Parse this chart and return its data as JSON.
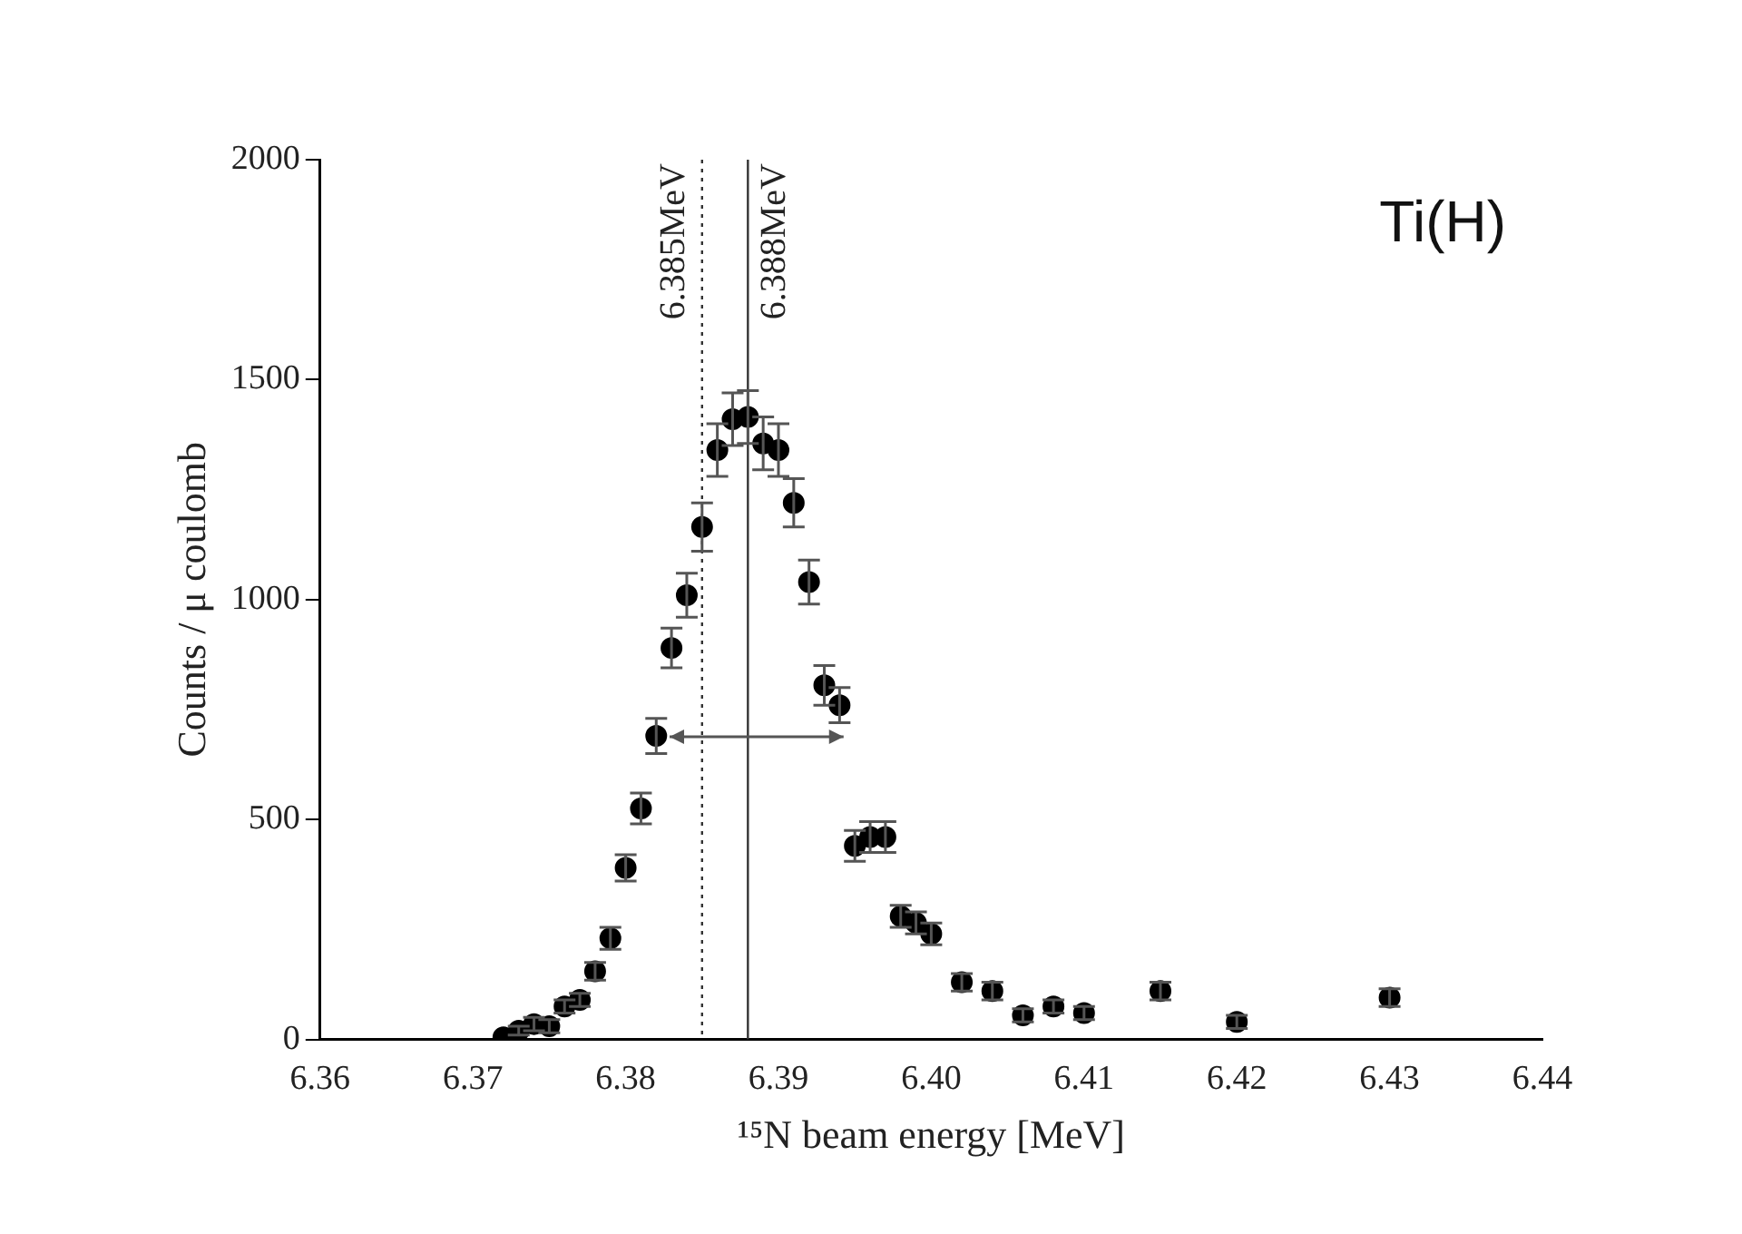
{
  "chart_data": {
    "type": "scatter",
    "xlabel": "¹⁵N beam energy [MeV]",
    "ylabel": "Counts / μ coulomb",
    "annotations": [
      "Ti(H)"
    ],
    "x": [
      6.372,
      6.373,
      6.374,
      6.375,
      6.376,
      6.377,
      6.378,
      6.379,
      6.38,
      6.381,
      6.382,
      6.383,
      6.384,
      6.385,
      6.386,
      6.387,
      6.388,
      6.389,
      6.39,
      6.391,
      6.392,
      6.393,
      6.394,
      6.395,
      6.396,
      6.397,
      6.398,
      6.399,
      6.4,
      6.402,
      6.404,
      6.406,
      6.408,
      6.41,
      6.415,
      6.42,
      6.43
    ],
    "values": [
      5,
      20,
      35,
      30,
      75,
      90,
      155,
      230,
      390,
      525,
      690,
      890,
      1010,
      1165,
      1340,
      1410,
      1415,
      1355,
      1340,
      1220,
      1040,
      805,
      760,
      440,
      460,
      460,
      280,
      265,
      240,
      130,
      110,
      55,
      75,
      60,
      110,
      40,
      95
    ],
    "errors": [
      null,
      10,
      15,
      15,
      15,
      15,
      20,
      25,
      30,
      35,
      40,
      45,
      50,
      55,
      60,
      60,
      60,
      60,
      60,
      55,
      50,
      45,
      40,
      35,
      35,
      35,
      25,
      25,
      25,
      20,
      20,
      15,
      15,
      15,
      20,
      15,
      20
    ],
    "color": "#000000",
    "marker": "circle",
    "xlim": [
      6.36,
      6.44
    ],
    "xticks": [
      {
        "value": 6.36,
        "label": "6.36"
      },
      {
        "value": 6.37,
        "label": "6.37"
      },
      {
        "value": 6.38,
        "label": "6.38"
      },
      {
        "value": 6.39,
        "label": "6.39"
      },
      {
        "value": 6.4,
        "label": "6.40"
      },
      {
        "value": 6.41,
        "label": "6.41"
      },
      {
        "value": 6.42,
        "label": "6.42"
      },
      {
        "value": 6.43,
        "label": "6.43"
      },
      {
        "value": 6.44,
        "label": "6.44"
      }
    ],
    "ylim": [
      0,
      2000
    ],
    "yticks": [
      0,
      500,
      1000,
      1500,
      2000
    ],
    "ref_lines": [
      {
        "axis": "x",
        "value": 6.385,
        "label": "6.385MeV",
        "line_style": "dotted"
      },
      {
        "axis": "x",
        "value": 6.388,
        "label": "6.388MeV",
        "line_style": "solid"
      }
    ],
    "grid": false,
    "legend": false
  }
}
